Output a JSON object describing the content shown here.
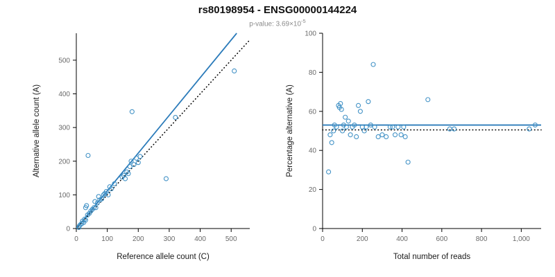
{
  "header": {
    "title": "rs80198954 - ENSG00000144224",
    "subtitle_prefix": "p-value: 3.69×10",
    "subtitle_exponent": "-5"
  },
  "colors": {
    "point": "#4292c6",
    "fit_line": "#2b7bba",
    "reference_line": "#000000",
    "axis": "#000000",
    "tick_label": "#696969"
  },
  "chart_data": [
    {
      "type": "scatter",
      "title": "",
      "xlabel": "Reference allele count (C)",
      "ylabel": "Alternative allele count (A)",
      "xlim": [
        0,
        560
      ],
      "ylim": [
        0,
        580
      ],
      "xticks": [
        0,
        100,
        200,
        300,
        400,
        500
      ],
      "xtick_labels": [
        "0",
        "100",
        "200",
        "300",
        "400",
        "500"
      ],
      "yticks": [
        0,
        100,
        200,
        300,
        400,
        500
      ],
      "ytick_labels": [
        "0",
        "100",
        "200",
        "300",
        "400",
        "500"
      ],
      "points": [
        [
          8,
          3
        ],
        [
          10,
          8
        ],
        [
          14,
          12
        ],
        [
          18,
          15
        ],
        [
          20,
          22
        ],
        [
          24,
          18
        ],
        [
          27,
          28
        ],
        [
          30,
          25
        ],
        [
          30,
          62
        ],
        [
          33,
          68
        ],
        [
          36,
          40
        ],
        [
          38,
          217
        ],
        [
          42,
          45
        ],
        [
          47,
          52
        ],
        [
          52,
          57
        ],
        [
          57,
          62
        ],
        [
          60,
          80
        ],
        [
          63,
          62
        ],
        [
          68,
          76
        ],
        [
          72,
          95
        ],
        [
          76,
          85
        ],
        [
          82,
          88
        ],
        [
          88,
          100
        ],
        [
          92,
          104
        ],
        [
          97,
          110
        ],
        [
          103,
          100
        ],
        [
          108,
          124
        ],
        [
          113,
          118
        ],
        [
          123,
          133
        ],
        [
          148,
          153
        ],
        [
          153,
          158
        ],
        [
          158,
          148
        ],
        [
          163,
          168
        ],
        [
          168,
          163
        ],
        [
          173,
          184
        ],
        [
          177,
          200
        ],
        [
          180,
          347
        ],
        [
          186,
          190
        ],
        [
          194,
          209
        ],
        [
          200,
          196
        ],
        [
          206,
          214
        ],
        [
          290,
          148
        ],
        [
          320,
          330
        ],
        [
          510,
          468
        ]
      ],
      "lines": [
        {
          "name": "fit-line",
          "kind": "abline",
          "slope": 1.12,
          "intercept": 0,
          "style": "solid",
          "color": "#2b7bba"
        },
        {
          "name": "identity-line",
          "kind": "abline",
          "slope": 1.0,
          "intercept": 0,
          "style": "dotted",
          "color": "#000000"
        }
      ]
    },
    {
      "type": "scatter",
      "title": "",
      "xlabel": "Total number of reads",
      "ylabel": "Percentage alternative (A)",
      "xlim": [
        0,
        1100
      ],
      "ylim": [
        0,
        100
      ],
      "xticks": [
        0,
        200,
        400,
        600,
        800,
        1000
      ],
      "xtick_labels": [
        "0",
        "200",
        "400",
        "600",
        "800",
        "1,000"
      ],
      "yticks": [
        0,
        20,
        40,
        60,
        80,
        100
      ],
      "ytick_labels": [
        "0",
        "20",
        "40",
        "60",
        "80",
        "100"
      ],
      "points": [
        [
          30,
          29
        ],
        [
          38,
          48
        ],
        [
          46,
          44
        ],
        [
          55,
          50
        ],
        [
          60,
          53
        ],
        [
          70,
          52
        ],
        [
          80,
          63
        ],
        [
          85,
          62
        ],
        [
          90,
          64
        ],
        [
          95,
          61
        ],
        [
          100,
          50
        ],
        [
          106,
          53
        ],
        [
          114,
          57
        ],
        [
          120,
          52
        ],
        [
          130,
          55
        ],
        [
          140,
          48
        ],
        [
          150,
          52
        ],
        [
          160,
          53
        ],
        [
          170,
          47
        ],
        [
          180,
          63
        ],
        [
          190,
          60
        ],
        [
          200,
          52
        ],
        [
          210,
          50
        ],
        [
          220,
          52
        ],
        [
          230,
          65
        ],
        [
          242,
          53
        ],
        [
          255,
          84
        ],
        [
          262,
          52
        ],
        [
          280,
          47
        ],
        [
          300,
          48
        ],
        [
          320,
          47
        ],
        [
          340,
          52
        ],
        [
          352,
          52
        ],
        [
          365,
          48
        ],
        [
          380,
          52
        ],
        [
          395,
          48
        ],
        [
          408,
          52
        ],
        [
          416,
          47
        ],
        [
          430,
          34
        ],
        [
          530,
          66
        ],
        [
          640,
          51
        ],
        [
          662,
          51
        ],
        [
          1040,
          51
        ],
        [
          1070,
          53
        ]
      ],
      "lines": [
        {
          "name": "mean-line",
          "kind": "hline",
          "y": 53,
          "style": "solid",
          "color": "#2b7bba"
        },
        {
          "name": "expected-line",
          "kind": "hline",
          "y": 50.5,
          "style": "dotted",
          "color": "#000000"
        }
      ]
    }
  ]
}
